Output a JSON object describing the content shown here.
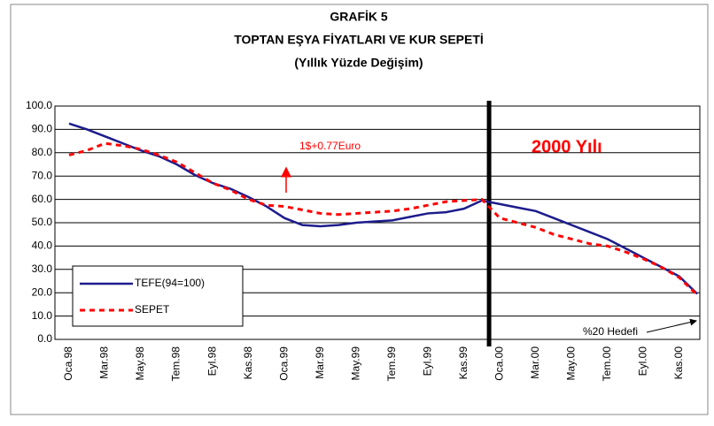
{
  "chart_data": {
    "type": "line",
    "title": [
      "GRAFİK 5",
      "TOPTAN EŞYA FİYATLARI VE KUR SEPETİ",
      "(Yıllık Yüzde Değişim)"
    ],
    "categories": [
      "Oca.98",
      null,
      "Mar.98",
      null,
      "May.98",
      null,
      "Tem.98",
      null,
      "Eyl.98",
      null,
      "Kas.98",
      null,
      "Oca.99",
      null,
      "Mar.99",
      null,
      "May.99",
      null,
      "Tem.99",
      null,
      "Eyl.99",
      null,
      "Kas.99",
      null,
      "Oca.00",
      null,
      "Mar.00",
      null,
      "May.00",
      null,
      "Tem.00",
      null,
      "Eyl.00",
      null,
      "Kas.00",
      null
    ],
    "series": [
      {
        "name": "TEFE(94=100)",
        "color": "#1c1c8c",
        "dashed": false,
        "values": [
          92.5,
          90,
          87,
          84,
          81,
          78.5,
          75,
          70.5,
          67,
          64.5,
          61,
          57,
          52,
          49,
          48.5,
          49,
          50,
          50.5,
          51,
          52.5,
          54,
          54.5,
          56,
          59.5,
          58,
          56.5,
          55,
          52,
          49,
          46,
          43,
          39,
          35,
          31,
          27,
          19.5
        ]
      },
      {
        "name": "SEPET",
        "color": "#ff0000",
        "dashed": true,
        "values": [
          79,
          81,
          84,
          83,
          81.5,
          79,
          76,
          71.5,
          67,
          64,
          60,
          57.5,
          57,
          55.5,
          54,
          53.5,
          54,
          54.5,
          55,
          56,
          57.5,
          59,
          59.5,
          60,
          52,
          50,
          48,
          45,
          43,
          41,
          40,
          37.5,
          34.5,
          31,
          26.5,
          19
        ]
      }
    ],
    "ylim": [
      0,
      100
    ],
    "yticks": [
      {
        "value": 0,
        "label": "0.0"
      },
      {
        "value": 10,
        "label": "10.0"
      },
      {
        "value": 20,
        "label": "20.0"
      },
      {
        "value": 30,
        "label": "30.0"
      },
      {
        "value": 40,
        "label": "40.0"
      },
      {
        "value": 50,
        "label": "50.0"
      },
      {
        "value": 60,
        "label": "60.0"
      },
      {
        "value": 70,
        "label": "70.0"
      },
      {
        "value": 80,
        "label": "80.0"
      },
      {
        "value": 90,
        "label": "90.0"
      },
      {
        "value": 100,
        "label": "100.0"
      }
    ],
    "grid": true,
    "legend": "lower left",
    "annotations": [
      "1$+0.77Euro",
      "2000 Yılı",
      "%20 Hedefi"
    ]
  }
}
